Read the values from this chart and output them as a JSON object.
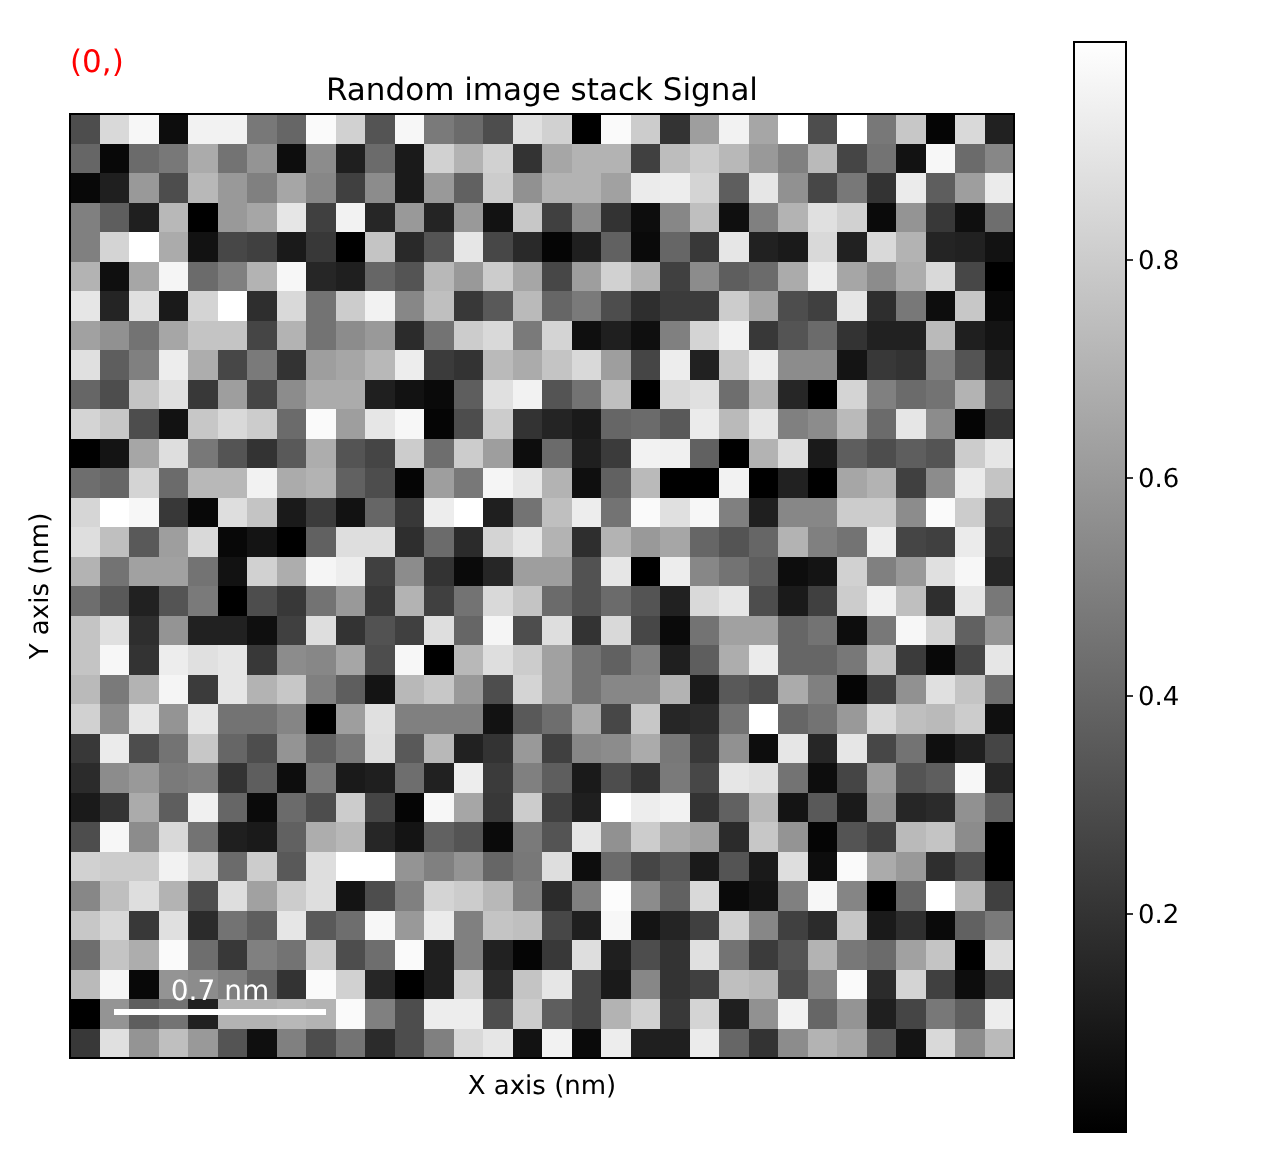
{
  "chart_data": {
    "type": "heatmap",
    "title": "Random image stack Signal",
    "xlabel": "X axis (nm)",
    "ylabel": "Y axis (nm)",
    "annotations": [
      "(0,)",
      "0.7 nm"
    ],
    "categories": [
      null,
      null,
      null,
      null,
      null,
      null,
      null,
      null,
      null,
      null,
      null,
      null,
      null,
      null,
      null,
      null,
      null,
      null,
      null,
      null,
      null,
      null,
      null,
      null,
      null,
      null,
      null,
      null,
      null,
      null,
      null,
      null
    ],
    "y_categories": [
      null,
      null,
      null,
      null,
      null,
      null,
      null,
      null,
      null,
      null,
      null,
      null,
      null,
      null,
      null,
      null,
      null,
      null,
      null,
      null,
      null,
      null,
      null,
      null,
      null,
      null,
      null,
      null,
      null,
      null,
      null,
      null
    ],
    "clim": [
      0,
      1
    ],
    "cticks": [
      0.2,
      0.4,
      0.6,
      0.8
    ],
    "cells": [
      [
        0.3,
        0.85,
        0.97,
        0.05,
        0.95,
        0.95,
        0.47,
        0.4,
        0.98,
        0.82,
        0.33,
        0.97,
        0.48,
        0.42,
        0.3,
        0.88,
        0.82,
        0,
        0.98,
        0.8,
        0.2,
        0.62,
        0.95,
        0.65,
        1,
        0.3,
        1,
        0.47,
        0.78,
        0.02,
        0.85,
        0.13
      ],
      [
        0.4,
        0.03,
        0.42,
        0.47,
        0.67,
        0.45,
        0.58,
        0.05,
        0.55,
        0.12,
        0.42,
        0.1,
        0.82,
        0.7,
        0.82,
        0.2,
        0.65,
        0.7,
        0.7,
        0.25,
        0.74,
        0.8,
        0.72,
        0.6,
        0.5,
        0.73,
        0.27,
        0.45,
        0.07,
        0.97,
        0.42,
        0.53
      ],
      [
        0.03,
        0.12,
        0.6,
        0.3,
        0.72,
        0.6,
        0.5,
        0.65,
        0.53,
        0.25,
        0.55,
        0.1,
        0.6,
        0.38,
        0.8,
        0.57,
        0.7,
        0.7,
        0.63,
        0.92,
        0.93,
        0.83,
        0.37,
        0.9,
        0.57,
        0.28,
        0.47,
        0.2,
        0.92,
        0.37,
        0.62,
        0.92
      ],
      [
        0.5,
        0.37,
        0.12,
        0.72,
        0,
        0.6,
        0.65,
        0.9,
        0.25,
        0.95,
        0.15,
        0.6,
        0.14,
        0.6,
        0.07,
        0.78,
        0.25,
        0.55,
        0.2,
        0.05,
        0.53,
        0.75,
        0.06,
        0.5,
        0.7,
        0.88,
        0.82,
        0.04,
        0.58,
        0.22,
        0.06,
        0.43
      ],
      [
        0.5,
        0.83,
        1,
        0.67,
        0.07,
        0.28,
        0.25,
        0.1,
        0.22,
        0,
        0.77,
        0.16,
        0.33,
        0.9,
        0.28,
        0.16,
        0.02,
        0.12,
        0.38,
        0.04,
        0.4,
        0.22,
        0.9,
        0.13,
        0.1,
        0.85,
        0.13,
        0.85,
        0.7,
        0.14,
        0.13,
        0.07
      ],
      [
        0.7,
        0.06,
        0.65,
        0.96,
        0.42,
        0.5,
        0.7,
        0.97,
        0.15,
        0.12,
        0.4,
        0.33,
        0.72,
        0.6,
        0.8,
        0.65,
        0.28,
        0.62,
        0.82,
        0.7,
        0.25,
        0.55,
        0.37,
        0.42,
        0.67,
        0.93,
        0.65,
        0.55,
        0.68,
        0.85,
        0.28,
        0
      ],
      [
        0.9,
        0.14,
        0.88,
        0.1,
        0.83,
        1,
        0.18,
        0.85,
        0.45,
        0.8,
        0.95,
        0.53,
        0.75,
        0.22,
        0.35,
        0.73,
        0.4,
        0.48,
        0.3,
        0.18,
        0.23,
        0.23,
        0.8,
        0.65,
        0.3,
        0.25,
        0.9,
        0.18,
        0.47,
        0.05,
        0.78,
        0.04
      ],
      [
        0.63,
        0.57,
        0.45,
        0.65,
        0.77,
        0.77,
        0.27,
        0.7,
        0.45,
        0.55,
        0.6,
        0.17,
        0.45,
        0.8,
        0.85,
        0.48,
        0.83,
        0.06,
        0.12,
        0.06,
        0.5,
        0.83,
        0.95,
        0.22,
        0.33,
        0.42,
        0.2,
        0.13,
        0.13,
        0.73,
        0.12,
        0.08
      ],
      [
        0.88,
        0.37,
        0.5,
        0.93,
        0.68,
        0.28,
        0.48,
        0.2,
        0.62,
        0.65,
        0.72,
        0.93,
        0.23,
        0.2,
        0.73,
        0.67,
        0.77,
        0.85,
        0.62,
        0.27,
        0.93,
        0.13,
        0.78,
        0.93,
        0.55,
        0.55,
        0.08,
        0.22,
        0.2,
        0.5,
        0.33,
        0.12
      ],
      [
        0.4,
        0.3,
        0.77,
        0.88,
        0.22,
        0.62,
        0.27,
        0.55,
        0.67,
        0.67,
        0.12,
        0.07,
        0.04,
        0.37,
        0.88,
        0.95,
        0.33,
        0.45,
        0.75,
        0,
        0.85,
        0.88,
        0.43,
        0.7,
        0.15,
        0,
        0.83,
        0.5,
        0.42,
        0.45,
        0.7,
        0.35
      ],
      [
        0.83,
        0.78,
        0.3,
        0.07,
        0.78,
        0.85,
        0.8,
        0.42,
        0.98,
        0.62,
        0.9,
        0.97,
        0.02,
        0.3,
        0.8,
        0.2,
        0.14,
        0.1,
        0.4,
        0.42,
        0.35,
        0.92,
        0.73,
        0.9,
        0.5,
        0.55,
        0.73,
        0.42,
        0.9,
        0.55,
        0.02,
        0.2
      ],
      [
        0,
        0.08,
        0.65,
        0.87,
        0.47,
        0.33,
        0.2,
        0.35,
        0.68,
        0.33,
        0.27,
        0.8,
        0.43,
        0.8,
        0.62,
        0.05,
        0.42,
        0.12,
        0.23,
        0.95,
        0.94,
        0.38,
        0,
        0.7,
        0.87,
        0.1,
        0.37,
        0.3,
        0.37,
        0.33,
        0.8,
        0.9
      ],
      [
        0.43,
        0.4,
        0.83,
        0.42,
        0.72,
        0.72,
        0.95,
        0.67,
        0.7,
        0.38,
        0.3,
        0.02,
        0.62,
        0.47,
        0.96,
        0.9,
        0.7,
        0.06,
        0.38,
        0.73,
        0,
        0,
        0.95,
        0,
        0.13,
        0,
        0.65,
        0.7,
        0.25,
        0.55,
        0.92,
        0.77
      ],
      [
        0.84,
        1,
        0.97,
        0.22,
        0.03,
        0.87,
        0.77,
        0.1,
        0.23,
        0.07,
        0.4,
        0.22,
        0.93,
        1,
        0.12,
        0.45,
        0.75,
        0.93,
        0.45,
        0.98,
        0.88,
        0.97,
        0.5,
        0.12,
        0.53,
        0.53,
        0.8,
        0.8,
        0.55,
        0.98,
        0.8,
        0.25
      ],
      [
        0.87,
        0.75,
        0.35,
        0.62,
        0.85,
        0.03,
        0.08,
        0,
        0.38,
        0.87,
        0.87,
        0.18,
        0.42,
        0.17,
        0.83,
        0.9,
        0.7,
        0.18,
        0.7,
        0.6,
        0.65,
        0.4,
        0.33,
        0.4,
        0.7,
        0.5,
        0.45,
        0.93,
        0.27,
        0.25,
        0.92,
        0.2
      ],
      [
        0.7,
        0.45,
        0.63,
        0.63,
        0.45,
        0.07,
        0.82,
        0.68,
        0.96,
        0.93,
        0.25,
        0.55,
        0.2,
        0.04,
        0.15,
        0.62,
        0.62,
        0.32,
        0.9,
        0,
        0.93,
        0.53,
        0.45,
        0.37,
        0.05,
        0.08,
        0.82,
        0.5,
        0.6,
        0.88,
        0.97,
        0.15
      ],
      [
        0.43,
        0.35,
        0.13,
        0.33,
        0.48,
        0,
        0.3,
        0.22,
        0.45,
        0.6,
        0.22,
        0.7,
        0.25,
        0.45,
        0.85,
        0.77,
        0.42,
        0.32,
        0.42,
        0.33,
        0.13,
        0.85,
        0.9,
        0.3,
        0.1,
        0.25,
        0.8,
        0.94,
        0.75,
        0.18,
        0.9,
        0.47
      ],
      [
        0.77,
        0.88,
        0.18,
        0.58,
        0.13,
        0.13,
        0.06,
        0.25,
        0.87,
        0.2,
        0.32,
        0.25,
        0.87,
        0.4,
        0.96,
        0.3,
        0.87,
        0.2,
        0.85,
        0.28,
        0.04,
        0.45,
        0.63,
        0.63,
        0.4,
        0.45,
        0.05,
        0.47,
        0.97,
        0.83,
        0.38,
        0.58
      ],
      [
        0.77,
        0.97,
        0.2,
        0.93,
        0.88,
        0.9,
        0.22,
        0.55,
        0.53,
        0.65,
        0.3,
        0.97,
        0,
        0.72,
        0.87,
        0.8,
        0.63,
        0.45,
        0.38,
        0.5,
        0.12,
        0.37,
        0.68,
        0.92,
        0.4,
        0.4,
        0.47,
        0.77,
        0.23,
        0.03,
        0.27,
        0.9
      ],
      [
        0.73,
        0.48,
        0.7,
        0.96,
        0.23,
        0.9,
        0.7,
        0.78,
        0.5,
        0.37,
        0.08,
        0.72,
        0.78,
        0.6,
        0.3,
        0.83,
        0.63,
        0.45,
        0.53,
        0.53,
        0.7,
        0.1,
        0.35,
        0.3,
        0.67,
        0.5,
        0.02,
        0.25,
        0.57,
        0.88,
        0.77,
        0.43
      ],
      [
        0.82,
        0.55,
        0.9,
        0.58,
        0.9,
        0.45,
        0.45,
        0.52,
        0,
        0.62,
        0.88,
        0.5,
        0.5,
        0.5,
        0.07,
        0.35,
        0.43,
        0.67,
        0.28,
        0.78,
        0.15,
        0.17,
        0.45,
        1,
        0.4,
        0.45,
        0.6,
        0.85,
        0.75,
        0.73,
        0.8,
        0.06
      ],
      [
        0.22,
        0.92,
        0.3,
        0.45,
        0.78,
        0.4,
        0.3,
        0.58,
        0.38,
        0.47,
        0.87,
        0.35,
        0.72,
        0.13,
        0.2,
        0.6,
        0.25,
        0.53,
        0.55,
        0.67,
        0.47,
        0.22,
        0.57,
        0.05,
        0.9,
        0.15,
        0.9,
        0.28,
        0.45,
        0.06,
        0.12,
        0.27
      ],
      [
        0.17,
        0.55,
        0.6,
        0.48,
        0.5,
        0.2,
        0.37,
        0.05,
        0.48,
        0.1,
        0.12,
        0.43,
        0.13,
        0.93,
        0.23,
        0.5,
        0.37,
        0.1,
        0.3,
        0.2,
        0.48,
        0.28,
        0.9,
        0.88,
        0.45,
        0.05,
        0.27,
        0.62,
        0.33,
        0.37,
        0.97,
        0.15
      ],
      [
        0.1,
        0.2,
        0.67,
        0.37,
        0.94,
        0.4,
        0.04,
        0.42,
        0.3,
        0.8,
        0.27,
        0.02,
        0.97,
        0.65,
        0.22,
        0.8,
        0.25,
        0.12,
        1,
        0.93,
        0.95,
        0.2,
        0.38,
        0.72,
        0.08,
        0.35,
        0.1,
        0.57,
        0.15,
        0.17,
        0.57,
        0.38
      ],
      [
        0.3,
        0.97,
        0.55,
        0.85,
        0.45,
        0.12,
        0.1,
        0.38,
        0.68,
        0.72,
        0.15,
        0.08,
        0.38,
        0.33,
        0.04,
        0.48,
        0.33,
        0.9,
        0.57,
        0.8,
        0.67,
        0.63,
        0.17,
        0.78,
        0.58,
        0.02,
        0.33,
        0.25,
        0.73,
        0.77,
        0.55,
        0
      ],
      [
        0.82,
        0.8,
        0.8,
        0.95,
        0.85,
        0.42,
        0.8,
        0.35,
        0.87,
        1,
        1,
        0.58,
        0.5,
        0.58,
        0.4,
        0.47,
        0.87,
        0.05,
        0.42,
        0.27,
        0.33,
        0.1,
        0.33,
        0.1,
        0.87,
        0.05,
        0.98,
        0.67,
        0.6,
        0.18,
        0.3,
        0
      ],
      [
        0.53,
        0.75,
        0.87,
        0.7,
        0.3,
        0.87,
        0.63,
        0.8,
        0.87,
        0.08,
        0.3,
        0.5,
        0.83,
        0.8,
        0.72,
        0.5,
        0.17,
        0.5,
        0.99,
        0.55,
        0.38,
        0.85,
        0.04,
        0.08,
        0.5,
        0.97,
        0.52,
        0,
        0.4,
        1,
        0.72,
        0.25
      ],
      [
        0.78,
        0.85,
        0.22,
        0.88,
        0.17,
        0.45,
        0.37,
        0.9,
        0.35,
        0.43,
        0.97,
        0.6,
        0.92,
        0.5,
        0.77,
        0.75,
        0.28,
        0.12,
        0.97,
        0.08,
        0.14,
        0.25,
        0.82,
        0.53,
        0.25,
        0.17,
        0.78,
        0.1,
        0.18,
        0.04,
        0.38,
        0.48
      ],
      [
        0.43,
        0.77,
        0.68,
        0.98,
        0.43,
        0.22,
        0.5,
        0.45,
        0.8,
        0.3,
        0.43,
        0.98,
        0.12,
        0.5,
        0.13,
        0.02,
        0.22,
        0.87,
        0.12,
        0.3,
        0.2,
        0.88,
        0.45,
        0.23,
        0.33,
        0.7,
        0.47,
        0.42,
        0.63,
        0.77,
        0,
        0.87
      ],
      [
        0.73,
        0.96,
        0.03,
        0.58,
        0.55,
        0.5,
        0.4,
        0.2,
        0.98,
        0.82,
        0.15,
        0,
        0.12,
        0.82,
        0.17,
        0.77,
        0.9,
        0.28,
        0.1,
        0.53,
        0.2,
        0.25,
        0.75,
        0.72,
        0.3,
        0.52,
        0.98,
        0.17,
        0.83,
        0.25,
        0.05,
        0.23
      ],
      [
        0,
        0.58,
        0.37,
        0.45,
        0.13,
        0.7,
        0.7,
        0.72,
        0.7,
        0.98,
        0.5,
        0.3,
        0.93,
        0.93,
        0.3,
        0.8,
        0.37,
        0.28,
        0.7,
        0.82,
        0.22,
        0.83,
        0.12,
        0.57,
        0.95,
        0.4,
        0.58,
        0.12,
        0.27,
        0.47,
        0.37,
        0.93
      ],
      [
        0.22,
        0.88,
        0.58,
        0.75,
        0.6,
        0.33,
        0.06,
        0.5,
        0.3,
        0.45,
        0.17,
        0.3,
        0.5,
        0.85,
        0.9,
        0.07,
        0.95,
        0.04,
        0.93,
        0.12,
        0.12,
        0.92,
        0.4,
        0.2,
        0.55,
        0.7,
        0.65,
        0.35,
        0.08,
        0.85,
        0.55,
        0.73
      ]
    ]
  }
}
